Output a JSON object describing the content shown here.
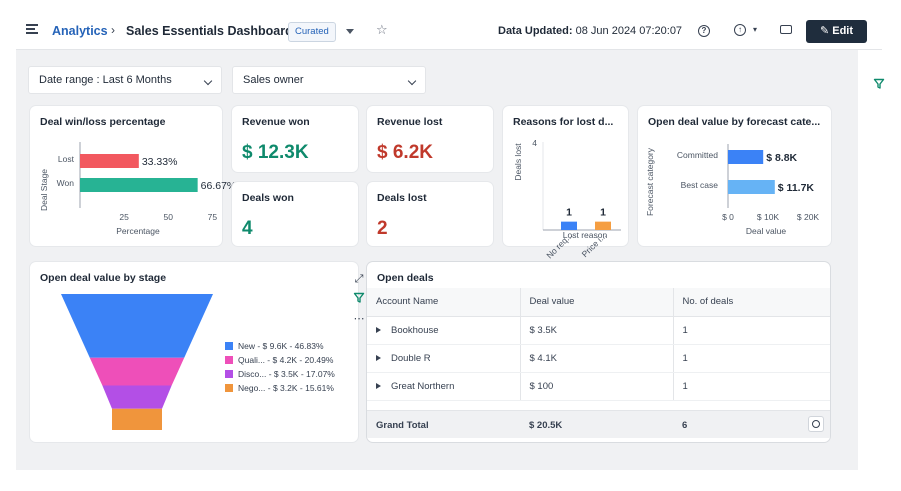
{
  "header": {
    "breadcrumb_root": "Analytics",
    "breadcrumb_sep": "›",
    "title": "Sales Essentials Dashboard",
    "badge": "Curated",
    "data_updated_label": "Data Updated:",
    "data_updated_value": "08 Jun 2024 07:20:07",
    "edit_label": "Edit",
    "help_glyph": "?",
    "export_glyph": "↑"
  },
  "filters": {
    "date_range": "Date range : Last 6 Months",
    "sales_owner": "Sales owner"
  },
  "colors": {
    "won": "#27b394",
    "lost": "#f2585f",
    "blue": "#3b82f6",
    "orange": "#f59e42",
    "light_blue": "#66b3f5",
    "pink": "#ee4fb9",
    "purple": "#b34fe6",
    "amber": "#f0953c",
    "accent": "#2563b8"
  },
  "cards": {
    "winloss": {
      "title": "Deal win/loss percentage",
      "chart_data": {
        "type": "bar",
        "orientation": "horizontal",
        "categories": [
          "Lost",
          "Won"
        ],
        "values": [
          33.33,
          66.67
        ],
        "value_labels": [
          "33.33%",
          "66.67%"
        ],
        "ylabel": "Deal Stage",
        "xlabel": "Percentage",
        "xticks": [
          "25",
          "50",
          "75"
        ],
        "xlim": [
          0,
          85
        ]
      }
    },
    "revenue_won": {
      "title": "Revenue won",
      "value": "$ 12.3K"
    },
    "revenue_lost": {
      "title": "Revenue lost",
      "value": "$ 6.2K"
    },
    "deals_won": {
      "title": "Deals won",
      "value": "4"
    },
    "deals_lost": {
      "title": "Deals lost",
      "value": "2"
    },
    "reasons": {
      "title": "Reasons for lost d...",
      "chart_data": {
        "type": "bar",
        "categories": [
          "No req...",
          "Price i..."
        ],
        "values": [
          1,
          1
        ],
        "value_labels": [
          "1",
          "1"
        ],
        "ylabel": "Deals lost",
        "ytick": "4",
        "xlabel": "Lost reason",
        "ylim": [
          0,
          4
        ]
      }
    },
    "forecast": {
      "title": "Open deal value by forecast cate...",
      "chart_data": {
        "type": "bar",
        "orientation": "horizontal",
        "categories": [
          "Committed",
          "Best case"
        ],
        "values": [
          8800,
          11700
        ],
        "value_labels": [
          "$ 8.8K",
          "$ 11.7K"
        ],
        "ylabel": "Forecast category",
        "xlabel": "Deal value",
        "xticks": [
          "$ 0",
          "$ 10K",
          "$ 20K"
        ],
        "xlim": [
          0,
          20000
        ]
      }
    },
    "stage": {
      "title": "Open deal value by stage",
      "chart_data": {
        "type": "funnel",
        "categories": [
          "New",
          "Quali...",
          "Disco...",
          "Nego..."
        ],
        "values": [
          9600,
          4200,
          3500,
          3200
        ],
        "legend": [
          "New   - $ 9.6K - 46.83%",
          "Quali...  - $ 4.2K - 20.49%",
          "Disco...  - $ 3.5K - 17.07%",
          "Nego...   - $ 3.2K - 15.61%"
        ]
      }
    },
    "open_deals": {
      "title": "Open deals",
      "columns": [
        "Account Name",
        "Deal value",
        "No. of deals"
      ],
      "rows": [
        [
          "Bookhouse",
          "$ 3.5K",
          "1"
        ],
        [
          "Double R",
          "$ 4.1K",
          "1"
        ],
        [
          "Great Northern",
          "$ 100",
          "1"
        ]
      ],
      "grand_total": [
        "Grand Total",
        "$ 20.5K",
        "6"
      ]
    }
  }
}
